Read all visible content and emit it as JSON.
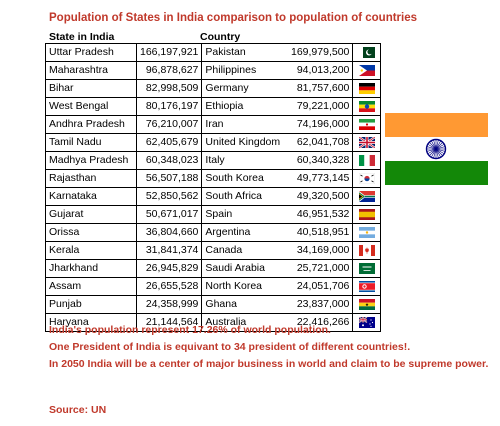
{
  "title": "Population of States in India comparison to population of countries",
  "headers": {
    "state": "State in India",
    "country": "Country"
  },
  "rows": [
    {
      "state": "Uttar Pradesh",
      "state_pop": "166,197,921",
      "country": "Pakistan",
      "country_pop": "169,979,500",
      "flag": "pakistan-flag-icon"
    },
    {
      "state": "Maharashtra",
      "state_pop": "96,878,627",
      "country": "Philippines",
      "country_pop": "94,013,200",
      "flag": "philippines-flag-icon"
    },
    {
      "state": "Bihar",
      "state_pop": "82,998,509",
      "country": "Germany",
      "country_pop": "81,757,600",
      "flag": "germany-flag-icon"
    },
    {
      "state": "West Bengal",
      "state_pop": "80,176,197",
      "country": "Ethiopia",
      "country_pop": "79,221,000",
      "flag": "ethiopia-flag-icon"
    },
    {
      "state": "Andhra Pradesh",
      "state_pop": "76,210,007",
      "country": "Iran",
      "country_pop": "74,196,000",
      "flag": "iran-flag-icon"
    },
    {
      "state": "Tamil Nadu",
      "state_pop": "62,405,679",
      "country": "United Kingdom",
      "country_pop": "62,041,708",
      "flag": "uk-flag-icon"
    },
    {
      "state": "Madhya Pradesh",
      "state_pop": "60,348,023",
      "country": "Italy",
      "country_pop": "60,340,328",
      "flag": "italy-flag-icon"
    },
    {
      "state": "Rajasthan",
      "state_pop": "56,507,188",
      "country": "South Korea",
      "country_pop": "49,773,145",
      "flag": "south-korea-flag-icon"
    },
    {
      "state": "Karnataka",
      "state_pop": "52,850,562",
      "country": "South Africa",
      "country_pop": "49,320,500",
      "flag": "south-africa-flag-icon"
    },
    {
      "state": "Gujarat",
      "state_pop": "50,671,017",
      "country": "Spain",
      "country_pop": "46,951,532",
      "flag": "spain-flag-icon"
    },
    {
      "state": "Orissa",
      "state_pop": "36,804,660",
      "country": "Argentina",
      "country_pop": "40,518,951",
      "flag": "argentina-flag-icon"
    },
    {
      "state": "Kerala",
      "state_pop": "31,841,374",
      "country": "Canada",
      "country_pop": "34,169,000",
      "flag": "canada-flag-icon"
    },
    {
      "state": "Jharkhand",
      "state_pop": "26,945,829",
      "country": "Saudi Arabia",
      "country_pop": "25,721,000",
      "flag": "saudi-arabia-flag-icon"
    },
    {
      "state": "Assam",
      "state_pop": "26,655,528",
      "country": "North Korea",
      "country_pop": "24,051,706",
      "flag": "north-korea-flag-icon"
    },
    {
      "state": "Punjab",
      "state_pop": "24,358,999",
      "country": "Ghana",
      "country_pop": "23,837,000",
      "flag": "ghana-flag-icon"
    },
    {
      "state": "Haryana",
      "state_pop": "21,144,564",
      "country": "Australia",
      "country_pop": "22,416,266",
      "flag": "australia-flag-icon"
    }
  ],
  "notes": [
    "India's population represent 17.26% of world population.",
    "One President of India is equivant to 34 president of different countries!.",
    "In 2050 India will be a center of major business in world and claim to be supreme power."
  ],
  "source": "Source: UN",
  "colors": {
    "title": "#c0392b",
    "saffron": "#ff9933",
    "green": "#138808",
    "chakra": "#000080"
  }
}
